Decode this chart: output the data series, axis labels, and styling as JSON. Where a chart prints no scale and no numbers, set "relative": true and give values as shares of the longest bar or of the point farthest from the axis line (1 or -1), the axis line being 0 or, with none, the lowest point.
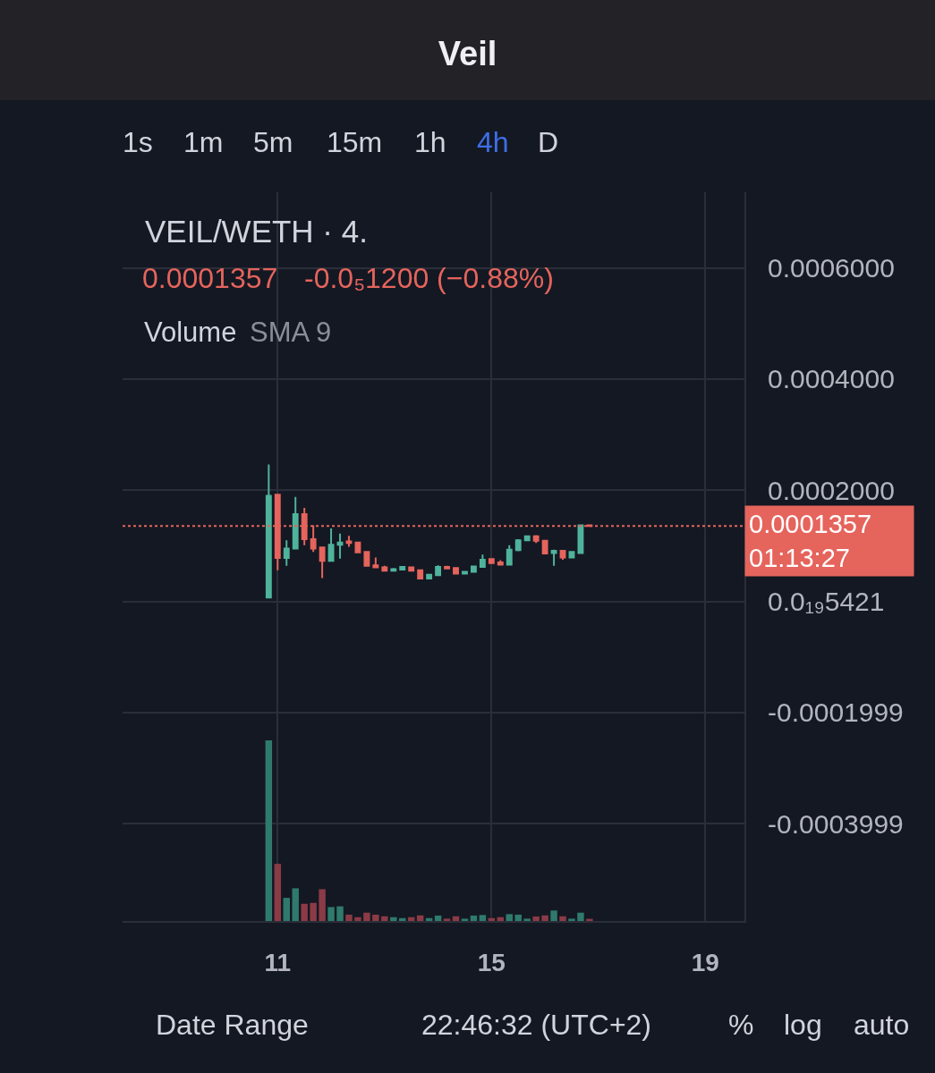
{
  "chart_data": [
    {
      "type": "candlestick",
      "title": "Veil",
      "subtitle": "VEIL/WETH · 4.",
      "x": [
        10.8333,
        11,
        11.1667,
        11.3333,
        11.5,
        11.6667,
        11.8333,
        12,
        12.1667,
        12.3333,
        12.5,
        12.6667,
        12.8333,
        13,
        13.1667,
        13.3333,
        13.5,
        13.6667,
        13.8333,
        14,
        14.1667,
        14.3333,
        14.5,
        14.6667,
        14.8333,
        15,
        15.1667,
        15.3333,
        15.5,
        15.6667,
        15.8333,
        16,
        16.1667,
        16.3333,
        16.5,
        16.6667,
        16.8333
      ],
      "ohlc": [
        [
          7e-06,
          0.000246,
          7e-06,
          0.00019
        ],
        [
          0.000192,
          0.000193,
          5.6e-05,
          7.8e-05
        ],
        [
          7.8e-05,
          0.00011,
          6.4e-05,
          9.5e-05
        ],
        [
          9.5e-05,
          0.000188,
          9.4e-05,
          0.000157
        ],
        [
          0.000157,
          0.000168,
          0.000101,
          0.000112
        ],
        [
          0.000112,
          0.000137,
          8.9e-05,
          9.5e-05
        ],
        [
          9.7e-05,
          9.7e-05,
          4.2e-05,
          7.3e-05
        ],
        [
          7.3e-05,
          0.000131,
          7.3e-05,
          0.000102
        ],
        [
          0.000102,
          0.000122,
          7.7e-05,
          0.000106
        ],
        [
          0.000108,
          0.000118,
          9.8e-05,
          0.000105
        ],
        [
          0.000106,
          0.000106,
          8.8e-05,
          8.8e-05
        ],
        [
          8.9e-05,
          8.9e-05,
          6.3e-05,
          6.4e-05
        ],
        [
          6.5e-05,
          7.9e-05,
          6e-05,
          6.1e-05
        ],
        [
          6.1e-05,
          6.4e-05,
          5.5e-05,
          5.5e-05
        ],
        [
          5.5e-05,
          6e-05,
          5.4e-05,
          5.8e-05
        ],
        [
          5.7e-05,
          6.3e-05,
          5.6e-05,
          6.2e-05
        ],
        [
          6.1e-05,
          6.2e-05,
          5.5e-05,
          5.5e-05
        ],
        [
          5.6e-05,
          5.7e-05,
          4.1e-05,
          4.1e-05
        ],
        [
          4.1e-05,
          4.9e-05,
          4.1e-05,
          4.8e-05
        ],
        [
          4.7e-05,
          6.5e-05,
          4.7e-05,
          6.2e-05
        ],
        [
          6.2e-05,
          6.4e-05,
          5.8e-05,
          5.9e-05
        ],
        [
          6e-05,
          6.1e-05,
          4.9e-05,
          5e-05
        ],
        [
          5e-05,
          5.4e-05,
          5e-05,
          5.3e-05
        ],
        [
          5.3e-05,
          6.4e-05,
          5.3e-05,
          6.3e-05
        ],
        [
          6.2e-05,
          8.4e-05,
          6.2e-05,
          7.5e-05
        ],
        [
          7.6e-05,
          7.7e-05,
          6.9e-05,
          6.9e-05
        ],
        [
          7e-05,
          7.4e-05,
          6.6e-05,
          6.6e-05
        ],
        [
          6.6e-05,
          0.000101,
          6.6e-05,
          9.3e-05
        ],
        [
          9.2e-05,
          0.000112,
          9e-05,
          0.00011
        ],
        [
          0.00011,
          0.000118,
          0.00011,
          0.000117
        ],
        [
          0.000117,
          0.000119,
          0.000105,
          0.000109
        ],
        [
          0.000109,
          0.000109,
          8.6e-05,
          8.6e-05
        ],
        [
          8.7e-05,
          9.3e-05,
          6.4e-05,
          9.1e-05
        ],
        [
          9.1e-05,
          9.2e-05,
          7.5e-05,
          7.9e-05
        ],
        [
          7.9e-05,
          8.9e-05,
          7.9e-05,
          8.9e-05
        ],
        [
          8.7e-05,
          0.0001369,
          8.7e-05,
          0.0001369
        ],
        [
          0.0001369,
          0.000138,
          0.000135,
          0.0001357
        ]
      ],
      "colors": [
        "#4fb39b",
        "#e5645c",
        "#4fb39b",
        "#4fb39b",
        "#e5645c",
        "#e5645c",
        "#e5645c",
        "#4fb39b",
        "#4fb39b",
        "#e5645c",
        "#e5645c",
        "#e5645c",
        "#e5645c",
        "#e5645c",
        "#4fb39b",
        "#4fb39b",
        "#e5645c",
        "#e5645c",
        "#4fb39b",
        "#4fb39b",
        "#e5645c",
        "#e5645c",
        "#4fb39b",
        "#4fb39b",
        "#4fb39b",
        "#e5645c",
        "#e5645c",
        "#4fb39b",
        "#4fb39b",
        "#4fb39b",
        "#e5645c",
        "#e5645c",
        "#4fb39b",
        "#e5645c",
        "#4fb39b",
        "#4fb39b",
        "#e5645c"
      ],
      "xlim": [
        8.1,
        19.73
      ],
      "xticks": [
        11,
        15,
        19
      ],
      "ylim": [
        -0.000575,
        0.000736
      ],
      "yticks": [
        {
          "value": 0.0006,
          "label": "0.0006000"
        },
        {
          "value": 0.0004,
          "label": "0.0004000"
        },
        {
          "value": 0.0002,
          "label": "0.0002000"
        },
        {
          "value": 5.421e-20,
          "label": "0.0₁₉5421"
        },
        -0.0001999,
        -0.0003999
      ],
      "grid": true,
      "ref_lines": [
        {
          "axis": "y",
          "value": 0.0001357,
          "label": "0.0001357\n01:13:27",
          "color": "#e5645c",
          "line_style": "dotted"
        }
      ],
      "annotations": [
        "0.0001357",
        "-0.0₅1200 (−0.88%)",
        "1s",
        "1m",
        "5m",
        "15m",
        "1h",
        "4h",
        "D",
        "Date Range",
        "22:46:32 (UTC+2)",
        "%",
        "log",
        "auto"
      ]
    },
    {
      "type": "bar",
      "title": "Volume",
      "subtitle": "SMA 9",
      "relative": true,
      "x": [
        10.8333,
        11,
        11.1667,
        11.3333,
        11.5,
        11.6667,
        11.8333,
        12,
        12.1667,
        12.3333,
        12.5,
        12.6667,
        12.8333,
        13,
        13.1667,
        13.3333,
        13.5,
        13.6667,
        13.8333,
        14,
        14.1667,
        14.3333,
        14.5,
        14.6667,
        14.8333,
        15,
        15.1667,
        15.3333,
        15.5,
        15.6667,
        15.8333,
        16,
        16.1667,
        16.3333,
        16.5,
        16.6667,
        16.8333
      ],
      "values": [
        1.0,
        0.316,
        0.128,
        0.181,
        0.095,
        0.1,
        0.176,
        0.077,
        0.081,
        0.035,
        0.021,
        0.046,
        0.035,
        0.026,
        0.021,
        0.016,
        0.021,
        0.031,
        0.016,
        0.03,
        0.013,
        0.026,
        0.013,
        0.03,
        0.033,
        0.016,
        0.021,
        0.038,
        0.035,
        0.013,
        0.025,
        0.031,
        0.058,
        0.026,
        0.013,
        0.046,
        0.012
      ],
      "colors": [
        "#2f7a6c",
        "#8b3b46",
        "#2f7a6c",
        "#2f7a6c",
        "#8b3b46",
        "#8b3b46",
        "#8b3b46",
        "#2f7a6c",
        "#2f7a6c",
        "#8b3b46",
        "#8b3b46",
        "#8b3b46",
        "#8b3b46",
        "#8b3b46",
        "#2f7a6c",
        "#2f7a6c",
        "#8b3b46",
        "#8b3b46",
        "#2f7a6c",
        "#2f7a6c",
        "#8b3b46",
        "#8b3b46",
        "#2f7a6c",
        "#2f7a6c",
        "#2f7a6c",
        "#8b3b46",
        "#8b3b46",
        "#2f7a6c",
        "#2f7a6c",
        "#2f7a6c",
        "#8b3b46",
        "#8b3b46",
        "#2f7a6c",
        "#8b3b46",
        "#2f7a6c",
        "#2f7a6c",
        "#8b3b46"
      ],
      "xlim": [
        8.1,
        19.73
      ],
      "tick_labels": false
    }
  ]
}
